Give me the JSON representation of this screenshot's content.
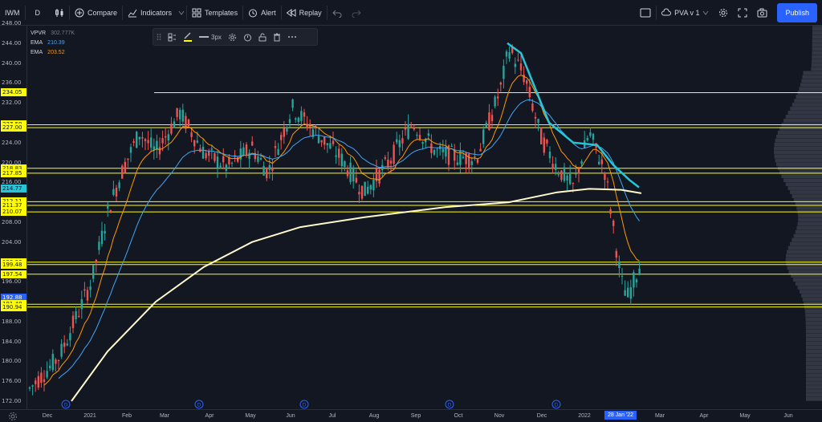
{
  "toolbar": {
    "symbol": "IWM",
    "interval": "D",
    "compare_label": "Compare",
    "indicators_label": "Indicators",
    "templates_label": "Templates",
    "alert_label": "Alert",
    "replay_label": "Replay",
    "layout_name": "PVA v 1",
    "publish_label": "Publish"
  },
  "legend": [
    {
      "name": "VPVR",
      "value": "302.777K",
      "color": "#787b86"
    },
    {
      "name": "EMA",
      "value": "210.39",
      "color": "#42a5f5"
    },
    {
      "name": "EMA",
      "value": "203.52",
      "color": "#ff9800"
    }
  ],
  "draw_toolbar": {
    "width_label": "3px"
  },
  "price_axis": {
    "ticks": [
      "248.00",
      "244.00",
      "240.00",
      "236.00",
      "232.00",
      "228.00",
      "224.00",
      "220.00",
      "216.00",
      "212.00",
      "208.00",
      "204.00",
      "200.00",
      "196.00",
      "192.00",
      "188.00",
      "184.00",
      "180.00",
      "176.00",
      "172.00"
    ],
    "labels": [
      {
        "text": "234.05",
        "price": 234.05,
        "style": "yellow"
      },
      {
        "text": "227.59",
        "price": 227.59,
        "style": "yellow"
      },
      {
        "text": "227.00",
        "price": 227.0,
        "style": "yellow"
      },
      {
        "text": "218.83",
        "price": 218.83,
        "style": "yellow"
      },
      {
        "text": "217.85",
        "price": 217.85,
        "style": "yellow"
      },
      {
        "text": "214.77",
        "price": 214.77,
        "style": "cyan"
      },
      {
        "text": "212.11",
        "price": 212.11,
        "style": "yellow"
      },
      {
        "text": "211.37",
        "price": 211.37,
        "style": "yellow"
      },
      {
        "text": "210.07",
        "price": 210.07,
        "style": "yellow"
      },
      {
        "text": "199.96",
        "price": 199.96,
        "style": "yellow"
      },
      {
        "text": "199.48",
        "price": 199.48,
        "style": "yellow"
      },
      {
        "text": "197.54",
        "price": 197.54,
        "style": "yellow"
      },
      {
        "text": "192.88",
        "price": 192.88,
        "style": "blue"
      },
      {
        "text": "191.48",
        "price": 191.48,
        "style": "yellow"
      },
      {
        "text": "190.94",
        "price": 190.94,
        "style": "yellow"
      }
    ]
  },
  "time_axis": {
    "ticks": [
      "Dec",
      "2021",
      "Feb",
      "Mar",
      "Apr",
      "May",
      "Jun",
      "Jul",
      "Aug",
      "Sep",
      "Oct",
      "Nov",
      "Dec",
      "2022",
      "Mar",
      "Apr",
      "May",
      "Jun"
    ],
    "cursor_label": "28 Jan '22"
  },
  "horizontal_levels": [
    234.05,
    227.59,
    227.0,
    218.83,
    217.85,
    212.11,
    211.37,
    210.07,
    199.96,
    199.48,
    197.54,
    191.48,
    190.94
  ],
  "dividend_marker": "D",
  "colors": {
    "up": "#26a69a",
    "down": "#ef5350",
    "level": "#ffff00",
    "ema_fast": "#ff9800",
    "ema_mid": "#42a5f5",
    "ema_200": "#fffacd",
    "cyan_band": "#26c6da"
  }
}
